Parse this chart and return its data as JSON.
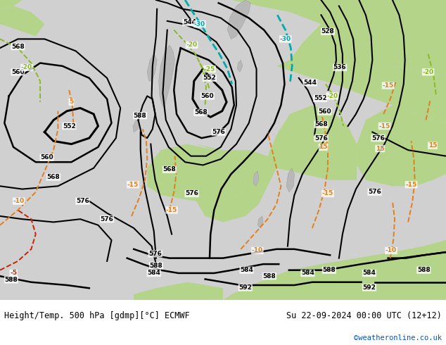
{
  "title_left": "Height/Temp. 500 hPa [gdmp][°C] ECMWF",
  "title_right": "Su 22-09-2024 00:00 UTC (12+12)",
  "credit": "©weatheronline.co.uk",
  "title_font_size": 8.5,
  "credit_color": "#0055cc",
  "figsize": [
    6.34,
    4.9
  ],
  "dpi": 100,
  "sea_color": "#d2d2d2",
  "land_gray": "#b8b8b8",
  "land_green": "#b0d890",
  "bg_color": "#ffffff"
}
